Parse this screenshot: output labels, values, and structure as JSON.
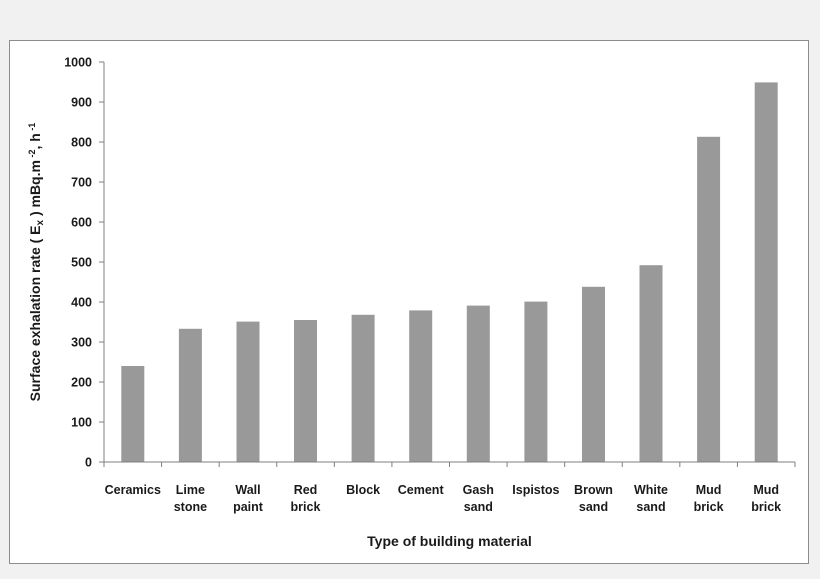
{
  "chart_data": {
    "type": "bar",
    "title": "",
    "xlabel": "Type of building material",
    "ylabel": "Surface exhalation rate   ( E",
    "ylabel_sub": "x",
    "ylabel_unit": " ) mBq.m",
    "ylabel_sup1": " -2",
    "ylabel_unit2": ", h",
    "ylabel_sup2": " -1",
    "ylim": [
      0,
      1000
    ],
    "yticks": [
      0,
      100,
      200,
      300,
      400,
      500,
      600,
      700,
      800,
      900,
      1000
    ],
    "grid": false,
    "legend": "none",
    "bar_color": "#999999",
    "categories": [
      [
        "Ceramics"
      ],
      [
        "Lime",
        "stone"
      ],
      [
        "Wall",
        "paint"
      ],
      [
        "Red",
        "brick"
      ],
      [
        "Block"
      ],
      [
        "Cement"
      ],
      [
        "Gash",
        "sand"
      ],
      [
        "Ispistos"
      ],
      [
        "Brown",
        "sand"
      ],
      [
        "White",
        "sand"
      ],
      [
        "Mud",
        "brick"
      ],
      [
        "Mud",
        "brick"
      ]
    ],
    "values": [
      240,
      333,
      351,
      355,
      368,
      379,
      391,
      401,
      438,
      492,
      813,
      949
    ]
  }
}
